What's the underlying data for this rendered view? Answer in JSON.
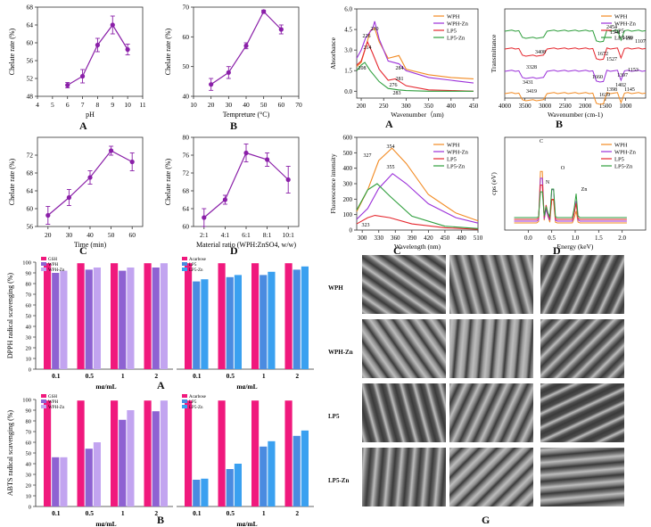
{
  "panel_letters": {
    "top_left": [
      "A",
      "B",
      "C",
      "D"
    ],
    "top_right": [
      "A",
      "B",
      "C",
      "D"
    ],
    "bottom": [
      "A",
      "B",
      "G"
    ]
  },
  "chart_data": [
    {
      "id": "tl_A",
      "type": "line",
      "xlabel": "pH",
      "ylabel": "Chelate rate (%)",
      "x": [
        6,
        7,
        8,
        9,
        10
      ],
      "values": [
        50.5,
        52.5,
        59.5,
        64,
        58.5
      ],
      "errors": [
        0.6,
        1.5,
        1.5,
        2,
        1.2
      ],
      "xlim": [
        4,
        11
      ],
      "ylim": [
        48,
        68
      ],
      "xticks": [
        "4",
        "5",
        "6",
        "7",
        "8",
        "9",
        "10",
        "11"
      ],
      "yticks": [
        "48",
        "52",
        "56",
        "60",
        "64",
        "68"
      ],
      "color": "#8a1fa8"
    },
    {
      "id": "tl_B",
      "type": "line",
      "xlabel": "Tempreture (°C)",
      "ylabel": "Chelate rate (%)",
      "x": [
        20,
        30,
        40,
        50,
        60
      ],
      "values": [
        44,
        48,
        57,
        68.5,
        62.5
      ],
      "errors": [
        2,
        2,
        1,
        0.5,
        1.5
      ],
      "xlim": [
        10,
        70
      ],
      "ylim": [
        40,
        70
      ],
      "xticks": [
        "10",
        "20",
        "30",
        "40",
        "50",
        "60",
        "70"
      ],
      "yticks": [
        "40",
        "50",
        "60",
        "70"
      ],
      "color": "#8a1fa8"
    },
    {
      "id": "tl_C",
      "type": "line",
      "xlabel": "Time (min)",
      "ylabel": "Chelate rate (%)",
      "x": [
        20,
        30,
        40,
        50,
        60
      ],
      "values": [
        58.5,
        62.5,
        67,
        73,
        70.5
      ],
      "errors": [
        2,
        1.8,
        1.5,
        1,
        2
      ],
      "xlim": [
        15,
        65
      ],
      "ylim": [
        56,
        76
      ],
      "xticks": [
        "20",
        "30",
        "40",
        "50",
        "60"
      ],
      "yticks": [
        "56",
        "60",
        "64",
        "68",
        "72"
      ],
      "color": "#8a1fa8"
    },
    {
      "id": "tl_D",
      "type": "line",
      "xlabel": "Material ratio    (WPH:ZnSO4, w/w)",
      "ylabel": "Chelate rate (%)",
      "categories": [
        "2:1",
        "4:1",
        "6:1",
        "8:1",
        "10:1"
      ],
      "values": [
        62,
        66,
        76.5,
        75,
        70.5
      ],
      "errors": [
        2,
        1,
        2,
        1.5,
        3
      ],
      "ylim": [
        60,
        80
      ],
      "yticks": [
        "60",
        "64",
        "68",
        "72",
        "76",
        "80"
      ],
      "color": "#8a1fa8"
    },
    {
      "id": "tr_A",
      "type": "line",
      "xlabel": "Wavenumber（nm)",
      "ylabel": "Absorbance",
      "xlim": [
        190,
        460
      ],
      "ylim": [
        -0.5,
        6
      ],
      "xticks": [
        "200",
        "250",
        "300",
        "350",
        "400",
        "450"
      ],
      "yticks": [
        "0.0",
        "1.5",
        "3.0",
        "4.5",
        "6.0"
      ],
      "legend": [
        "WPH",
        "WPH-Zn",
        "LP5",
        "LP5-Zn"
      ],
      "colors": [
        "#f28a22",
        "#9b30d9",
        "#e5262d",
        "#2e9e3c"
      ],
      "series": [
        {
          "name": "WPH",
          "x": [
            190,
            200,
            210,
            220,
            230,
            240,
            260,
            284,
            300,
            350,
            400,
            450
          ],
          "values": [
            1.8,
            2.1,
            3.2,
            4.4,
            4.6,
            3.6,
            2.4,
            2.6,
            1.6,
            1.2,
            1.0,
            0.9
          ]
        },
        {
          "name": "WPH-Zn",
          "x": [
            190,
            200,
            210,
            226,
            230,
            240,
            260,
            284,
            300,
            350,
            400,
            450
          ],
          "values": [
            2.4,
            3.0,
            3.9,
            4.6,
            5.1,
            3.8,
            2.2,
            2.0,
            1.5,
            1.0,
            0.8,
            0.6
          ]
        },
        {
          "name": "LP5",
          "x": [
            190,
            200,
            214,
            225,
            240,
            260,
            276,
            300,
            350,
            400,
            450
          ],
          "values": [
            1.9,
            2.2,
            3.6,
            2.8,
            1.6,
            0.8,
            0.9,
            0.4,
            0.1,
            0.05,
            0.0
          ]
        },
        {
          "name": "LP5-Zn",
          "x": [
            190,
            200,
            208,
            220,
            240,
            260,
            283,
            300,
            350,
            400,
            450
          ],
          "values": [
            1.5,
            1.9,
            2.1,
            1.5,
            0.7,
            0.2,
            0.1,
            0.05,
            0.0,
            0.0,
            0.0
          ]
        }
      ],
      "annotations": [
        "226",
        "230",
        "214",
        "208",
        "284",
        "281",
        "276",
        "283"
      ]
    },
    {
      "id": "tr_B",
      "type": "line",
      "xlabel": "Wavenumber (cm-1)",
      "ylabel": "Transmittance",
      "xlim": [
        4000,
        500
      ],
      "xticks": [
        "4000",
        "3500",
        "3000",
        "2500",
        "2000",
        "1500",
        "1000"
      ],
      "legend": [
        "WPH",
        "WPH-Zn",
        "LP5",
        "LP5-Zn"
      ],
      "colors": [
        "#f28a22",
        "#9b30d9",
        "#e5262d",
        "#2e9e3c"
      ],
      "annotations": [
        "3328",
        "3408",
        "3431",
        "3419",
        "2454",
        "1541",
        "1149",
        "1107",
        "1672",
        "1527",
        "1397",
        "1402",
        "1153",
        "1660",
        "1398",
        "1145",
        "1639"
      ]
    },
    {
      "id": "tr_C",
      "type": "line",
      "xlabel": "Wavelength (nm)",
      "ylabel": "Fluorescence intensity",
      "xlim": [
        290,
        510
      ],
      "ylim": [
        0,
        600
      ],
      "xticks": [
        "300",
        "330",
        "360",
        "390",
        "420",
        "450",
        "480",
        "510"
      ],
      "yticks": [
        "0",
        "100",
        "200",
        "300",
        "400",
        "500",
        "600"
      ],
      "legend": [
        "WPH",
        "WPH-Zn",
        "LP5",
        "LP5-Zn"
      ],
      "colors": [
        "#f28a22",
        "#9b30d9",
        "#e5262d",
        "#2e9e3c"
      ],
      "series": [
        {
          "name": "WPH",
          "x": [
            290,
            310,
            330,
            354,
            380,
            420,
            470,
            510
          ],
          "values": [
            120,
            260,
            450,
            530,
            430,
            230,
            110,
            60
          ]
        },
        {
          "name": "WPH-Zn",
          "x": [
            290,
            310,
            330,
            355,
            380,
            420,
            470,
            510
          ],
          "values": [
            70,
            140,
            270,
            365,
            300,
            170,
            80,
            45
          ]
        },
        {
          "name": "LP5",
          "x": [
            290,
            310,
            323,
            350,
            390,
            450,
            510
          ],
          "values": [
            40,
            80,
            95,
            80,
            40,
            15,
            5
          ]
        },
        {
          "name": "LP5-Zn",
          "x": [
            290,
            310,
            327,
            350,
            390,
            450,
            510
          ],
          "values": [
            130,
            260,
            300,
            220,
            90,
            25,
            10
          ]
        }
      ],
      "annotations": [
        "354",
        "355",
        "327",
        "323"
      ]
    },
    {
      "id": "tr_D",
      "type": "line",
      "xlabel": "Energy (keV)",
      "ylabel": "cps (eV)",
      "xlim": [
        -0.5,
        2.5
      ],
      "xticks": [
        "0.0",
        "0.5",
        "1.0",
        "1.5",
        "2.0"
      ],
      "legend": [
        "WPH",
        "WPH-Zn",
        "LP5",
        "LP5-Zn"
      ],
      "colors": [
        "#f28a22",
        "#9b30d9",
        "#e5262d",
        "#2e9e3c"
      ],
      "annotations": [
        "C",
        "N",
        "O",
        "Zn"
      ]
    },
    {
      "id": "bl_A",
      "type": "bar",
      "ylabel": "DPPH radical scavenging (%)",
      "xlabel": "mg/mL",
      "categories": [
        "0.1",
        "0.5",
        "1",
        "2"
      ],
      "ylim": [
        0,
        100
      ],
      "yticks": [
        "0",
        "10",
        "20",
        "30",
        "40",
        "50",
        "60",
        "70",
        "80",
        "90",
        "100"
      ],
      "groups": [
        {
          "legend": [
            "GSH",
            "WPH",
            "WPH-Zn"
          ],
          "colors": [
            "#f0197d",
            "#8e62d2",
            "#c2a4f0"
          ],
          "series": [
            {
              "name": "GSH",
              "values": [
                99,
                99,
                99,
                99
              ]
            },
            {
              "name": "WPH",
              "values": [
                90,
                93,
                92,
                95
              ]
            },
            {
              "name": "WPH-Zn",
              "values": [
                92,
                95,
                95,
                99
              ]
            }
          ]
        },
        {
          "legend": [
            "Acarbose",
            "LP5",
            "LP5-Zn"
          ],
          "colors": [
            "#f0197d",
            "#4a8be0",
            "#3aa0f0"
          ],
          "series": [
            {
              "name": "Acarbose",
              "values": [
                99,
                99,
                99,
                99
              ]
            },
            {
              "name": "LP5",
              "values": [
                82,
                86,
                88,
                93
              ]
            },
            {
              "name": "LP5-Zn",
              "values": [
                84,
                88,
                91,
                96
              ]
            }
          ]
        }
      ]
    },
    {
      "id": "bl_B",
      "type": "bar",
      "ylabel": "ABTS radical scavenging (%)",
      "xlabel": "mg/mL",
      "categories": [
        "0.1",
        "0.5",
        "1",
        "2"
      ],
      "ylim": [
        0,
        100
      ],
      "yticks": [
        "0",
        "10",
        "20",
        "30",
        "40",
        "50",
        "60",
        "70",
        "80",
        "90",
        "100"
      ],
      "groups": [
        {
          "legend": [
            "GSH",
            "WPH",
            "WPH-Zn"
          ],
          "colors": [
            "#f0197d",
            "#8e62d2",
            "#c2a4f0"
          ],
          "series": [
            {
              "name": "GSH",
              "values": [
                99,
                99,
                99,
                99
              ]
            },
            {
              "name": "WPH",
              "values": [
                46,
                54,
                81,
                89
              ]
            },
            {
              "name": "WPH-Zn",
              "values": [
                46,
                60,
                90,
                99
              ]
            }
          ]
        },
        {
          "legend": [
            "Acarbose",
            "LP5",
            "LP5-Zn"
          ],
          "colors": [
            "#f0197d",
            "#4a8be0",
            "#3aa0f0"
          ],
          "series": [
            {
              "name": "Acarbose",
              "values": [
                99,
                99,
                99,
                99
              ]
            },
            {
              "name": "LP5",
              "values": [
                25,
                35,
                56,
                66
              ]
            },
            {
              "name": "LP5-Zn",
              "values": [
                26,
                40,
                61,
                71
              ]
            }
          ]
        }
      ]
    }
  ],
  "sem": {
    "rows": [
      "WPH",
      "WPH-Zn",
      "LP5",
      "LP5-Zn"
    ],
    "letter": "G"
  }
}
